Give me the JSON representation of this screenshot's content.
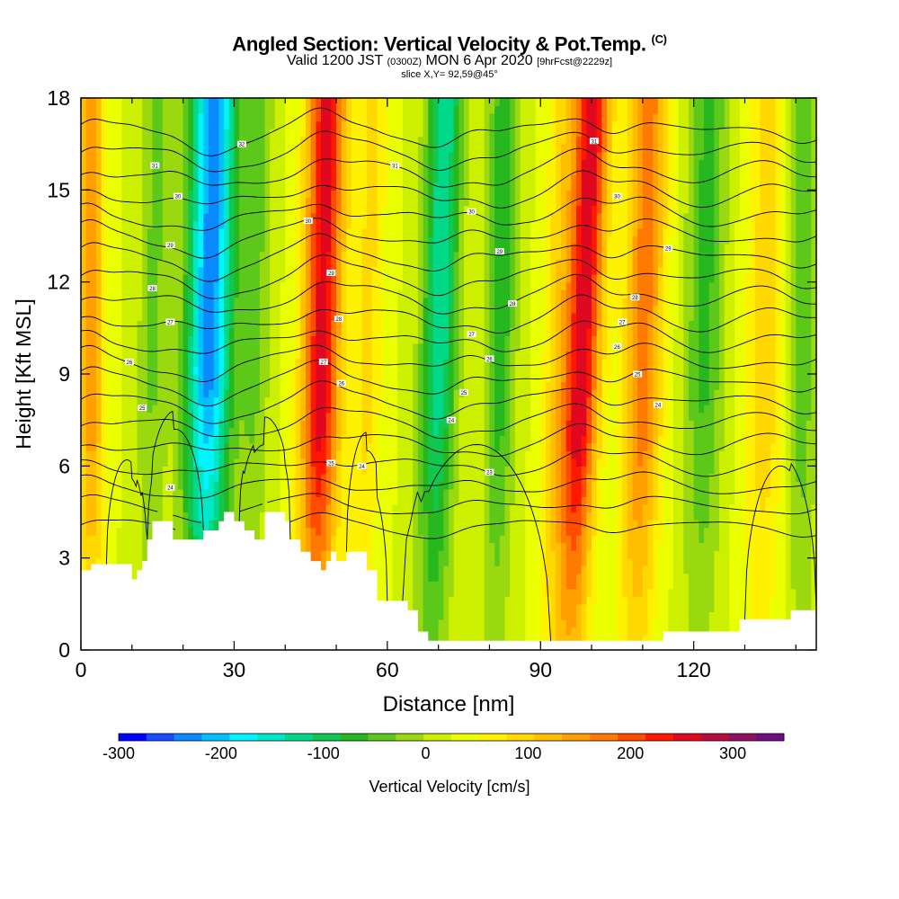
{
  "header": {
    "title": "Angled Section: Vertical Velocity & Pot.Temp.",
    "title_tag": "(C)",
    "subtitle_main": "Valid 1200 JST",
    "subtitle_utc": "(0300Z)",
    "subtitle_date": "MON 6 Apr 2020",
    "subtitle_fcst": "[9hrFcst@2229z]",
    "slice": "slice X,Y= 92,59@45°"
  },
  "chart_data": {
    "type": "heatmap",
    "title": "Angled Section: Vertical Velocity & Pot.Temp. (C)",
    "xlabel": "Distance [nm]",
    "ylabel": "Height [Kft MSL]",
    "xlim": [
      0,
      144
    ],
    "ylim": [
      0,
      18
    ],
    "x_ticks": [
      "0",
      "30",
      "60",
      "90",
      "120"
    ],
    "y_ticks": [
      "0",
      "3",
      "6",
      "9",
      "12",
      "15",
      "18"
    ],
    "x_tick_values": [
      0,
      30,
      60,
      90,
      120
    ],
    "y_tick_values": [
      0,
      3,
      6,
      9,
      12,
      15,
      18
    ],
    "colorbar": {
      "label": "Vertical Velocity [cm/s]",
      "range": [
        -300,
        350
      ],
      "tick_labels": [
        "-300",
        "-200",
        "-100",
        "0",
        "100",
        "200",
        "300"
      ],
      "tick_values": [
        -300,
        -200,
        -100,
        0,
        100,
        200,
        300
      ],
      "colors": [
        "#0000ff",
        "#1a4cff",
        "#0a8aff",
        "#00c0ff",
        "#00f5ff",
        "#00e8c8",
        "#00d88a",
        "#10c850",
        "#26b81e",
        "#5cc81a",
        "#9ad810",
        "#ccf000",
        "#eaff00",
        "#fff200",
        "#ffd800",
        "#ffbe00",
        "#ffa000",
        "#ff7a00",
        "#ff4c00",
        "#ff1800",
        "#e00820",
        "#b80c40",
        "#901060",
        "#6e0c82"
      ]
    },
    "velocity_bands": [
      {
        "x": 2,
        "w": 2.5,
        "amp": 120,
        "sk": 0
      },
      {
        "x": 14,
        "w": 3,
        "amp": -60,
        "sk": 0.1
      },
      {
        "x": 25,
        "w": 4.5,
        "amp": -260,
        "sk": 0.12
      },
      {
        "x": 34,
        "w": 3,
        "amp": -60,
        "sk": 0.1
      },
      {
        "x": 47,
        "w": 3.8,
        "amp": 230,
        "sk": 0.14
      },
      {
        "x": 56,
        "w": 3,
        "amp": 60,
        "sk": 0.15
      },
      {
        "x": 70,
        "w": 3.5,
        "amp": -160,
        "sk": 0.15
      },
      {
        "x": 82,
        "w": 3,
        "amp": -100,
        "sk": 0.1
      },
      {
        "x": 93,
        "w": 2.8,
        "amp": 60,
        "sk": 0.15
      },
      {
        "x": 98,
        "w": 3.5,
        "amp": 240,
        "sk": 0.25
      },
      {
        "x": 110,
        "w": 3.8,
        "amp": 150,
        "sk": 0.15
      },
      {
        "x": 122,
        "w": 3.8,
        "amp": -90,
        "sk": 0.1
      },
      {
        "x": 134,
        "w": 4,
        "amp": 70,
        "sk": 0.1
      },
      {
        "x": 141,
        "w": 3,
        "amp": -80,
        "sk": 0
      }
    ],
    "terrain": [
      [
        0,
        2.6
      ],
      [
        2,
        2.8
      ],
      [
        9,
        2.8
      ],
      [
        10,
        2.3
      ],
      [
        11,
        2.6
      ],
      [
        12,
        2.9
      ],
      [
        13,
        3.6
      ],
      [
        14,
        4.2
      ],
      [
        17,
        4.2
      ],
      [
        18,
        3.6
      ],
      [
        23,
        3.6
      ],
      [
        24,
        3.9
      ],
      [
        27,
        4.2
      ],
      [
        28,
        4.5
      ],
      [
        30,
        4.2
      ],
      [
        32,
        3.9
      ],
      [
        34,
        3.6
      ],
      [
        36,
        4.5
      ],
      [
        39,
        4.5
      ],
      [
        40,
        4.2
      ],
      [
        41,
        3.6
      ],
      [
        43,
        3.2
      ],
      [
        45,
        2.9
      ],
      [
        47,
        2.6
      ],
      [
        48,
        2.9
      ],
      [
        49,
        3.2
      ],
      [
        50,
        2.9
      ],
      [
        52,
        3.2
      ],
      [
        54,
        3.2
      ],
      [
        56,
        2.6
      ],
      [
        58,
        1.6
      ],
      [
        62,
        1.6
      ],
      [
        64,
        1.3
      ],
      [
        66,
        0.6
      ],
      [
        68,
        0.3
      ],
      [
        113,
        0.3
      ],
      [
        114,
        0.6
      ],
      [
        128,
        0.6
      ],
      [
        129,
        1.0
      ],
      [
        138,
        1.0
      ],
      [
        139,
        1.3
      ],
      [
        144,
        1.3
      ]
    ],
    "theta_contours": {
      "count": 20,
      "base_height": 4.0,
      "spacing": 0.68,
      "ripple": 0.55
    },
    "low_contours": [
      {
        "x0": 5,
        "x1": 13,
        "top": 6.2
      },
      {
        "x0": 13,
        "x1": 24,
        "top": 7.2
      },
      {
        "x0": 31,
        "x1": 41,
        "top": 7.6
      },
      {
        "x0": 52,
        "x1": 60,
        "top": 6.5
      },
      {
        "x0": 63,
        "x1": 92,
        "top": 6.7
      },
      {
        "x0": 130,
        "x1": 144,
        "top": 6.0
      }
    ],
    "contour_labels": [
      {
        "x": 14.5,
        "y": 15.8,
        "t": "31"
      },
      {
        "x": 31.5,
        "y": 16.5,
        "t": "32"
      },
      {
        "x": 19,
        "y": 14.8,
        "t": "30"
      },
      {
        "x": 17.5,
        "y": 13.2,
        "t": "29"
      },
      {
        "x": 14,
        "y": 11.8,
        "t": "28"
      },
      {
        "x": 17.5,
        "y": 10.7,
        "t": "27"
      },
      {
        "x": 9.5,
        "y": 9.4,
        "t": "26"
      },
      {
        "x": 12,
        "y": 7.9,
        "t": "25"
      },
      {
        "x": 17.5,
        "y": 5.3,
        "t": "24"
      },
      {
        "x": 44.5,
        "y": 14.0,
        "t": "30"
      },
      {
        "x": 49,
        "y": 12.3,
        "t": "29"
      },
      {
        "x": 50.5,
        "y": 10.8,
        "t": "28"
      },
      {
        "x": 47.5,
        "y": 9.4,
        "t": "27"
      },
      {
        "x": 51,
        "y": 8.7,
        "t": "26"
      },
      {
        "x": 49,
        "y": 6.1,
        "t": "25"
      },
      {
        "x": 55,
        "y": 6.0,
        "t": "24"
      },
      {
        "x": 61.5,
        "y": 15.8,
        "t": "31"
      },
      {
        "x": 76.5,
        "y": 14.3,
        "t": "30"
      },
      {
        "x": 82,
        "y": 13.0,
        "t": "29"
      },
      {
        "x": 84.5,
        "y": 11.3,
        "t": "28"
      },
      {
        "x": 76.5,
        "y": 10.3,
        "t": "27"
      },
      {
        "x": 80,
        "y": 9.5,
        "t": "26"
      },
      {
        "x": 75,
        "y": 8.4,
        "t": "25"
      },
      {
        "x": 72.5,
        "y": 7.5,
        "t": "24"
      },
      {
        "x": 80,
        "y": 5.8,
        "t": "23"
      },
      {
        "x": 100.5,
        "y": 16.6,
        "t": "31"
      },
      {
        "x": 105,
        "y": 14.8,
        "t": "30"
      },
      {
        "x": 115,
        "y": 13.1,
        "t": "29"
      },
      {
        "x": 108.5,
        "y": 11.5,
        "t": "28"
      },
      {
        "x": 106,
        "y": 10.7,
        "t": "27"
      },
      {
        "x": 105,
        "y": 9.9,
        "t": "26"
      },
      {
        "x": 109,
        "y": 9.0,
        "t": "25"
      },
      {
        "x": 113,
        "y": 8.0,
        "t": "24"
      }
    ]
  }
}
